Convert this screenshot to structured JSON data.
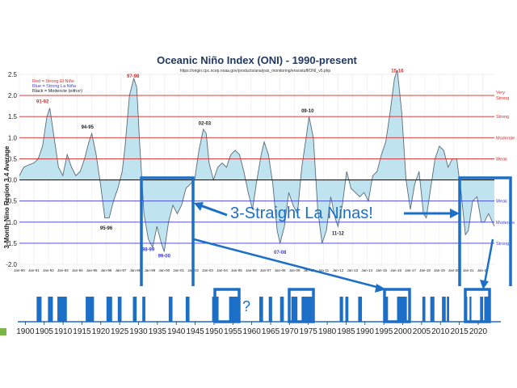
{
  "colors": {
    "accent_blue": "#1c6fc7",
    "area_fill": "#bfe3ef",
    "curve": "#5a6b78",
    "strong_red": "#d62a2a",
    "nino_blue": "#3b3bd6",
    "green_marker": "#7ab648"
  },
  "callout": {
    "text": "3-Straight La Ninas!"
  },
  "question_mark": "?",
  "chart_data": [
    {
      "type": "area",
      "title": "Oceanic Niño Index (ONI) - 1990-present",
      "subtitle": "https://origin.cpc.ncep.noaa.gov/products/analysis_monitoring/ensostuff/ONI_v5.php",
      "ylabel": "3-Month Nino Region 3.4 Average",
      "ylim": [
        -2.0,
        2.5
      ],
      "xlim": [
        1990.0,
        2022.8
      ],
      "y_ticks": [
        "2.5",
        "2.0",
        "1.5",
        "1.0",
        "0.5",
        "0.0",
        "-0.5",
        "-1.0",
        "-1.5",
        "-2.0"
      ],
      "x_ticks": [
        "Jan-90",
        "Jan-91",
        "Jan-92",
        "Jan-93",
        "Jan-94",
        "Jan-95",
        "Jan-96",
        "Jan-97",
        "Jan-98",
        "Jan-99",
        "Jan-00",
        "Jan-01",
        "Jan-02",
        "Jan-03",
        "Jan-04",
        "Jan-05",
        "Jan-06",
        "Jan-07",
        "Jan-08",
        "Jan-09",
        "Jan-10",
        "Jan-11",
        "Jan-12",
        "Jan-13",
        "Jan-14",
        "Jan-15",
        "Jan-16",
        "Jan-17",
        "Jan-18",
        "Jan-19",
        "Jan-20",
        "Jan-21",
        "Jan-22"
      ],
      "legend": [
        "Red = Strong El Niño",
        "Blue = Strong La Niña",
        "Black = Moderate (either)"
      ],
      "thresholds_right": [
        {
          "y": 2.0,
          "label": "Very Strong"
        },
        {
          "y": 1.5,
          "label": "Strong"
        },
        {
          "y": 1.0,
          "label": "Moderate"
        },
        {
          "y": 0.5,
          "label": "Weak"
        },
        {
          "y": -0.5,
          "label": "Weak"
        },
        {
          "y": -1.0,
          "label": "Moderate"
        },
        {
          "y": -1.5,
          "label": "Strong"
        }
      ],
      "event_labels": [
        {
          "text": "91-92",
          "x": 1991.6,
          "y": 1.82,
          "color": "#d62a2a"
        },
        {
          "text": "97-98",
          "x": 1997.85,
          "y": 2.42,
          "color": "#d62a2a"
        },
        {
          "text": "94-95",
          "x": 1994.7,
          "y": 1.22,
          "color": "#222222"
        },
        {
          "text": "95-96",
          "x": 1996.0,
          "y": -1.18,
          "color": "#222222"
        },
        {
          "text": "98-99",
          "x": 1998.9,
          "y": -1.68,
          "color": "#3b3bd6"
        },
        {
          "text": "99-00",
          "x": 2000.0,
          "y": -1.84,
          "color": "#3b3bd6"
        },
        {
          "text": "02-03",
          "x": 2002.8,
          "y": 1.3,
          "color": "#222222"
        },
        {
          "text": "07-08",
          "x": 2008.0,
          "y": -1.75,
          "color": "#3b3bd6"
        },
        {
          "text": "09-10",
          "x": 2009.9,
          "y": 1.6,
          "color": "#222222"
        },
        {
          "text": "11-12",
          "x": 2012.0,
          "y": -1.3,
          "color": "#222222"
        },
        {
          "text": "15-16",
          "x": 2016.1,
          "y": 2.55,
          "color": "#d62a2a"
        }
      ],
      "series": [
        {
          "x": [
            1990.0,
            1990.3,
            1990.6,
            1991.0,
            1991.3,
            1991.6,
            1991.9,
            1992.1,
            1992.4,
            1992.7,
            1993.0,
            1993.3,
            1993.6,
            1993.9,
            1994.2,
            1994.5,
            1994.8,
            1995.0,
            1995.3,
            1995.6,
            1995.9,
            1996.2,
            1996.5,
            1996.8,
            1997.1,
            1997.3,
            1997.6,
            1997.9,
            1998.1,
            1998.3,
            1998.6,
            1998.9,
            1999.2,
            1999.5,
            1999.8,
            2000.0,
            2000.3,
            2000.6,
            2000.9,
            2001.2,
            2001.5,
            2001.8,
            2002.1,
            2002.4,
            2002.7,
            2002.9,
            2003.1,
            2003.4,
            2003.7,
            2004.0,
            2004.3,
            2004.6,
            2004.9,
            2005.2,
            2005.5,
            2005.8,
            2006.1,
            2006.4,
            2006.7,
            2006.9,
            2007.2,
            2007.5,
            2007.8,
            2008.0,
            2008.3,
            2008.6,
            2008.9,
            2009.2,
            2009.5,
            2009.8,
            2010.0,
            2010.3,
            2010.6,
            2010.9,
            2011.2,
            2011.5,
            2011.8,
            2012.0,
            2012.3,
            2012.6,
            2012.9,
            2013.2,
            2013.5,
            2013.8,
            2014.1,
            2014.4,
            2014.7,
            2015.0,
            2015.3,
            2015.6,
            2015.9,
            2016.1,
            2016.4,
            2016.7,
            2017.0,
            2017.3,
            2017.6,
            2017.9,
            2018.1,
            2018.4,
            2018.7,
            2019.0,
            2019.3,
            2019.6,
            2019.9,
            2020.2,
            2020.5,
            2020.8,
            2021.0,
            2021.3,
            2021.6,
            2021.9,
            2022.1,
            2022.4,
            2022.8
          ],
          "y": [
            0.1,
            0.3,
            0.35,
            0.4,
            0.5,
            0.8,
            1.5,
            1.7,
            1.0,
            0.3,
            0.1,
            0.6,
            0.3,
            0.1,
            0.2,
            0.5,
            0.9,
            1.1,
            0.6,
            -0.1,
            -0.9,
            -0.9,
            -0.5,
            -0.2,
            0.2,
            0.8,
            2.0,
            2.4,
            2.2,
            0.9,
            -0.8,
            -1.4,
            -1.6,
            -1.1,
            -1.5,
            -1.7,
            -1.0,
            -0.6,
            -0.8,
            -0.6,
            -0.2,
            -0.1,
            0.0,
            0.7,
            1.2,
            1.1,
            0.4,
            0.0,
            0.3,
            0.4,
            0.3,
            0.6,
            0.7,
            0.6,
            0.2,
            -0.3,
            -0.7,
            0.0,
            0.6,
            0.9,
            0.6,
            -0.1,
            -1.2,
            -1.5,
            -1.1,
            -0.3,
            -0.6,
            -0.8,
            0.3,
            1.0,
            1.5,
            1.0,
            -0.7,
            -1.5,
            -1.2,
            -0.4,
            -0.9,
            -1.1,
            -0.6,
            0.2,
            -0.2,
            -0.3,
            -0.4,
            -0.3,
            -0.5,
            0.1,
            0.2,
            0.6,
            0.9,
            1.6,
            2.4,
            2.6,
            1.6,
            0.0,
            -0.7,
            -0.1,
            0.2,
            -0.8,
            -0.9,
            -0.2,
            0.5,
            0.8,
            0.7,
            0.3,
            0.5,
            0.5,
            -0.3,
            -1.3,
            -1.2,
            -0.5,
            -0.4,
            -1.0,
            -1.0,
            -0.8,
            -1.1
          ]
        }
      ]
    },
    {
      "type": "bar",
      "xlim": [
        1898,
        2026
      ],
      "x_ticks": [
        "1900",
        "1905",
        "1910",
        "1915",
        "1920",
        "1925",
        "1930",
        "1935",
        "1940",
        "1945",
        "1950",
        "1955",
        "1960",
        "1965",
        "1970",
        "1975",
        "1980",
        "1985",
        "1990",
        "1995",
        "2000",
        "2005",
        "2010",
        "2015",
        "2020"
      ],
      "la_nina_periods": [
        [
          1903.0,
          1904.3
        ],
        [
          1906.0,
          1907.3
        ],
        [
          1908.5,
          1911.0
        ],
        [
          1916.0,
          1918.2
        ],
        [
          1921.5,
          1923.0
        ],
        [
          1924.5,
          1925.5
        ],
        [
          1928.5,
          1929.5
        ],
        [
          1931.0,
          1931.8
        ],
        [
          1938.0,
          1939.0
        ],
        [
          1942.5,
          1943.5
        ],
        [
          1949.5,
          1951.2
        ],
        [
          1954.0,
          1956.8
        ],
        [
          1962.0,
          1963.0
        ],
        [
          1964.5,
          1965.4
        ],
        [
          1967.5,
          1968.5
        ],
        [
          1970.5,
          1972.1
        ],
        [
          1973.2,
          1976.0
        ],
        [
          1983.3,
          1984.2
        ],
        [
          1984.8,
          1985.6
        ],
        [
          1988.2,
          1989.2
        ],
        [
          1995.2,
          1996.1
        ],
        [
          1998.5,
          2001.1
        ],
        [
          2005.2,
          2006.0
        ],
        [
          2007.3,
          2008.4
        ],
        [
          2010.4,
          2011.4
        ],
        [
          2011.7,
          2012.3
        ],
        [
          2016.6,
          2017.1
        ],
        [
          2017.7,
          2018.2
        ],
        [
          2020.5,
          2021.3
        ],
        [
          2021.6,
          2023.0
        ]
      ]
    }
  ]
}
